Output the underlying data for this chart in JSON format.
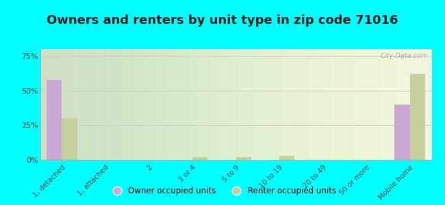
{
  "title": "Owners and renters by unit type in zip code 71016",
  "categories": [
    "1, detached",
    "1, attached",
    "2",
    "3 or 4",
    "5 to 9",
    "10 to 19",
    "20 to 49",
    "50 or more",
    "Mobile home"
  ],
  "owner_values": [
    58,
    0,
    0,
    0,
    0,
    0,
    0,
    0,
    40
  ],
  "renter_values": [
    30,
    0,
    0,
    2,
    2,
    3,
    0,
    0,
    62
  ],
  "owner_color": "#c9a8d4",
  "renter_color": "#c8cf9e",
  "background_color": "#00ffff",
  "plot_bg_color": "#eef5dc",
  "yticks": [
    0,
    25,
    50,
    75
  ],
  "ylim": [
    0,
    80
  ],
  "bar_width": 0.35,
  "title_fontsize": 13,
  "legend_labels": [
    "Owner occupied units",
    "Renter occupied units"
  ],
  "watermark": "City-Data.com"
}
